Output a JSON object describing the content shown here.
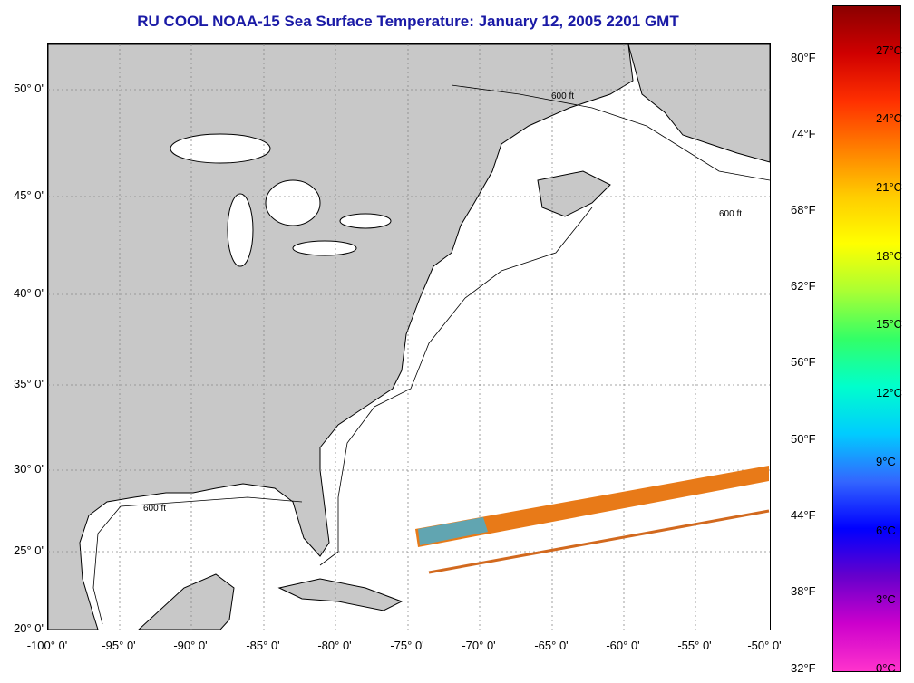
{
  "title": "RU COOL  NOAA-15  Sea Surface Temperature:  January 12, 2005 2201 GMT",
  "map": {
    "latitude_labels": [
      "50° 0'",
      "45° 0'",
      "40° 0'",
      "35° 0'",
      "30° 0'",
      "25° 0'",
      "20° 0'"
    ],
    "longitude_labels": [
      "-100° 0'",
      "-95° 0'",
      "-90° 0'",
      "-85° 0'",
      "-80° 0'",
      "-75° 0'",
      "-70° 0'",
      "-65° 0'",
      "-60° 0'",
      "-55° 0'",
      "-50° 0'"
    ],
    "isobath_label": "600 ft",
    "land_color": "#c8c8c8",
    "ocean_color": "#ffffff"
  },
  "colorbar": {
    "fahrenheit_labels": [
      "80°F",
      "74°F",
      "68°F",
      "62°F",
      "56°F",
      "50°F",
      "44°F",
      "38°F",
      "32°F"
    ],
    "celsius_labels": [
      "27°C",
      "24°C",
      "21°C",
      "18°C",
      "15°C",
      "12°C",
      "9°C",
      "6°C",
      "3°C",
      "0°C"
    ],
    "colors_top_to_bottom": [
      "#8b0000",
      "#d00000",
      "#ff3000",
      "#ff7f00",
      "#ffcc00",
      "#ffff00",
      "#aaff33",
      "#33ff66",
      "#00ffcc",
      "#00ccff",
      "#3366ff",
      "#0000ff",
      "#6600cc",
      "#cc00cc",
      "#ff33cc"
    ]
  }
}
